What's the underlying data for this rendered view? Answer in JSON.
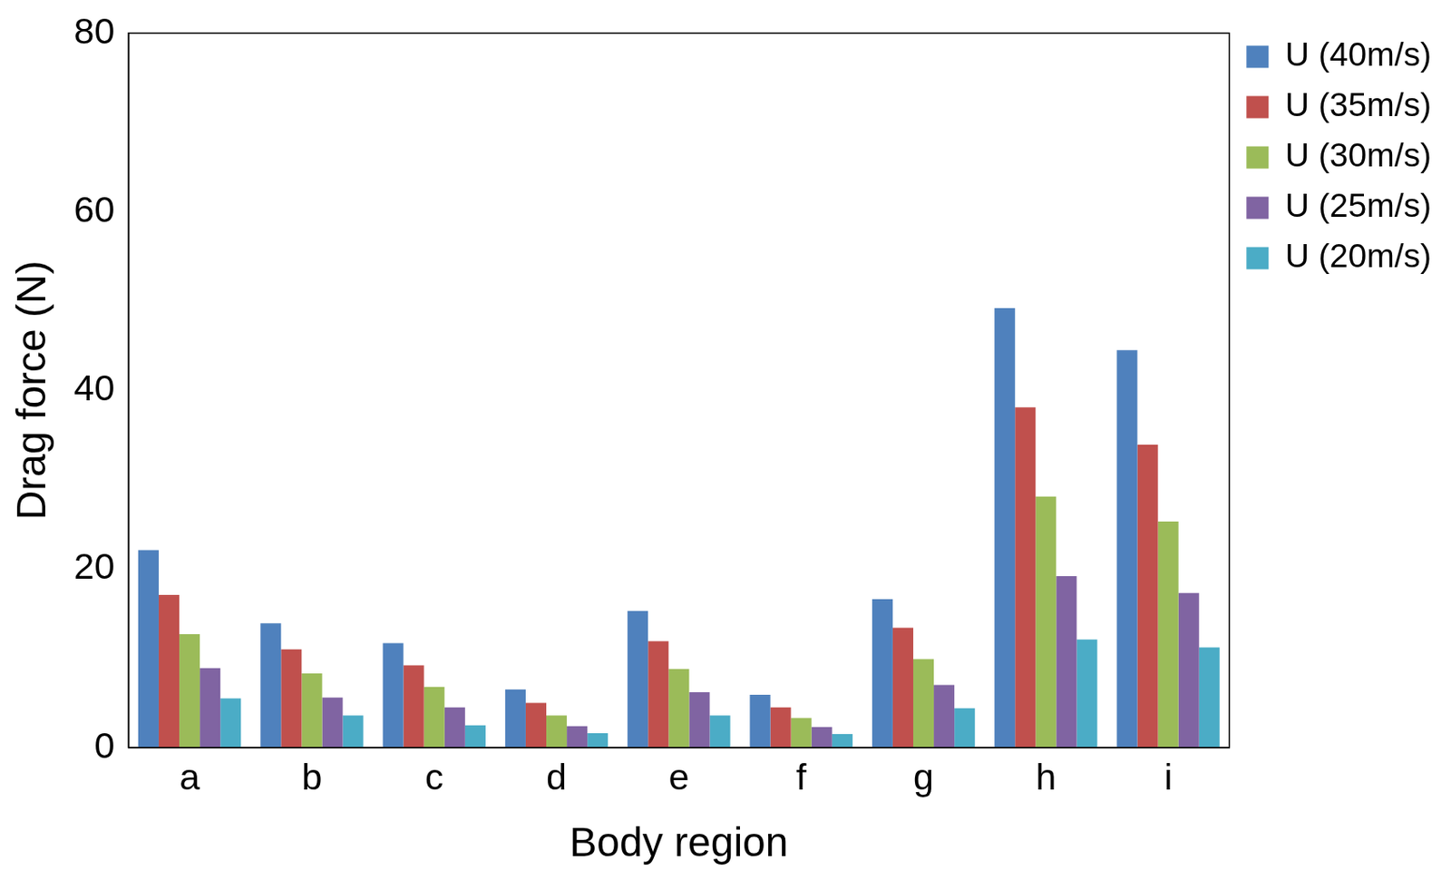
{
  "chart_data": {
    "type": "bar",
    "x_label": "Body region",
    "y_label": "Drag force (N)",
    "categories": [
      "a",
      "b",
      "c",
      "d",
      "e",
      "f",
      "g",
      "h",
      "i"
    ],
    "series": [
      {
        "name": "U (40m/s)",
        "color": "#4f81bd",
        "values": [
          22.1,
          13.9,
          11.7,
          6.5,
          15.3,
          5.9,
          16.6,
          49.2,
          44.5
        ]
      },
      {
        "name": "U (35m/s)",
        "color": "#c0504d",
        "values": [
          17.1,
          11.0,
          9.2,
          5.0,
          11.9,
          4.5,
          13.4,
          38.1,
          33.9
        ]
      },
      {
        "name": "U (30m/s)",
        "color": "#9bbb59",
        "values": [
          12.7,
          8.3,
          6.8,
          3.6,
          8.8,
          3.3,
          9.9,
          28.1,
          25.3
        ]
      },
      {
        "name": "U (25m/s)",
        "color": "#8064a2",
        "values": [
          8.9,
          5.6,
          4.5,
          2.4,
          6.2,
          2.3,
          7.0,
          19.2,
          17.3
        ]
      },
      {
        "name": "U (20m/s)",
        "color": "#4bacc6",
        "values": [
          5.5,
          3.6,
          2.5,
          1.6,
          3.6,
          1.5,
          4.4,
          12.1,
          11.2
        ]
      }
    ],
    "ylim": [
      0,
      80
    ],
    "yticks": [
      0,
      20,
      40,
      60,
      80
    ],
    "grid": false,
    "legend": "right"
  }
}
